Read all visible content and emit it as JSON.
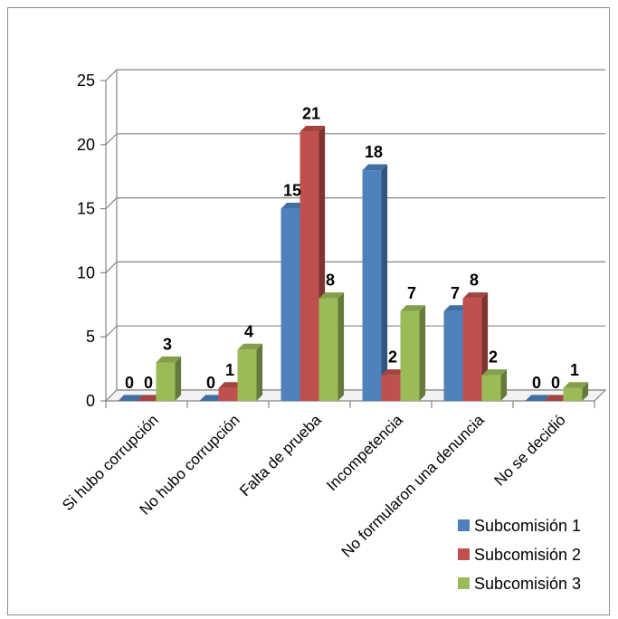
{
  "chart_data": {
    "type": "bar",
    "categories": [
      "Si hubo corrupción",
      "No hubo corrupción",
      "Falta de prueba",
      "Incompetencia",
      "No formularon una denuncia",
      "No se decidió"
    ],
    "series": [
      {
        "name": "Subcomisión 1",
        "values": [
          0,
          0,
          15,
          18,
          7,
          0
        ],
        "color": "#4f81bd"
      },
      {
        "name": "Subcomisión 2",
        "values": [
          0,
          1,
          21,
          2,
          8,
          0
        ],
        "color": "#c0504d"
      },
      {
        "name": "Subcomisión 3",
        "values": [
          3,
          4,
          8,
          7,
          2,
          1
        ],
        "color": "#9bbb59"
      }
    ],
    "ylim": [
      0,
      25
    ],
    "yticks": [
      0,
      5,
      10,
      15,
      20,
      25
    ],
    "grid": true,
    "three_d": true,
    "data_labels": true,
    "legend_position": "bottom-right"
  }
}
